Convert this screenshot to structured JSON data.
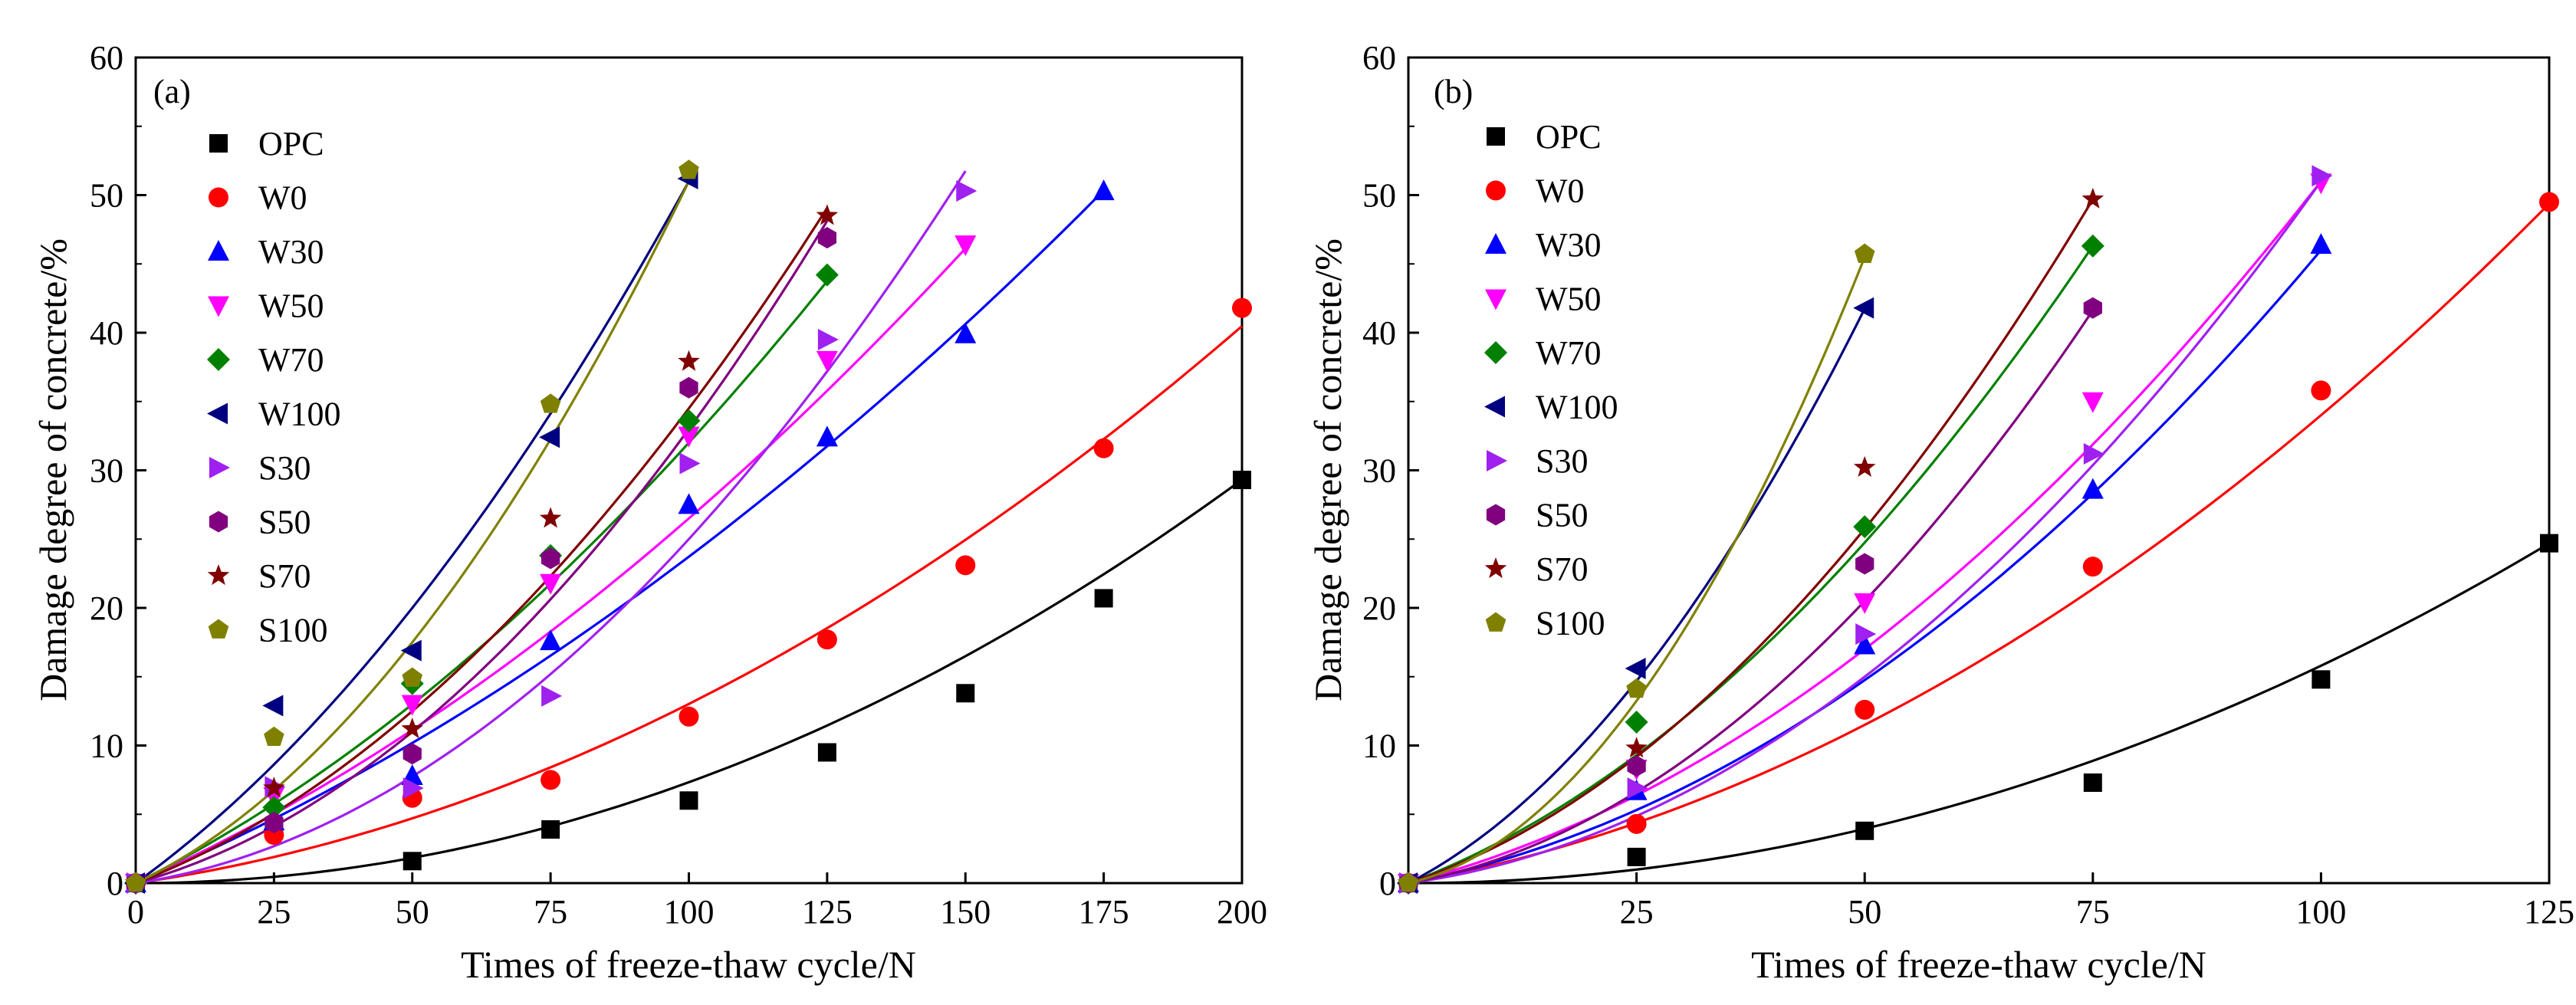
{
  "chart_data": [
    {
      "type": "scatter",
      "panel_label": "(a)",
      "xlabel": "Times of freeze-thaw cycle/N",
      "ylabel": "Damage degree of concrete/%",
      "xlim": [
        0,
        200
      ],
      "ylim": [
        0,
        60
      ],
      "xticks": [
        "0",
        "25",
        "50",
        "75",
        "100",
        "125",
        "150",
        "175",
        "200"
      ],
      "yticks": [
        "0",
        "10",
        "20",
        "30",
        "40",
        "50",
        "60"
      ],
      "legend_position": "top-left",
      "series": [
        {
          "name": "OPC",
          "marker": "square",
          "color": "#000000",
          "x": [
            0,
            50,
            75,
            100,
            125,
            150,
            175,
            200
          ],
          "y": [
            0,
            1.6,
            3.9,
            6.0,
            9.5,
            13.8,
            20.7,
            29.3
          ]
        },
        {
          "name": "W0",
          "marker": "circle",
          "color": "#ff0000",
          "x": [
            0,
            25,
            50,
            75,
            100,
            125,
            150,
            175,
            200
          ],
          "y": [
            0,
            3.5,
            6.2,
            7.5,
            12.1,
            17.7,
            23.1,
            31.6,
            41.8
          ]
        },
        {
          "name": "W30",
          "marker": "triangle-up",
          "color": "#0000ff",
          "x": [
            0,
            25,
            50,
            75,
            100,
            125,
            150,
            175
          ],
          "y": [
            0,
            4.5,
            7.8,
            17.6,
            27.5,
            32.4,
            39.9,
            50.3
          ]
        },
        {
          "name": "W50",
          "marker": "triangle-down",
          "color": "#ff00ff",
          "x": [
            0,
            25,
            50,
            75,
            100,
            125,
            150
          ],
          "y": [
            0,
            6.3,
            13.0,
            21.8,
            32.5,
            38.0,
            46.4
          ]
        },
        {
          "name": "W70",
          "marker": "diamond",
          "color": "#008000",
          "x": [
            0,
            25,
            50,
            75,
            100,
            125
          ],
          "y": [
            0,
            5.5,
            14.5,
            23.8,
            33.6,
            44.2
          ]
        },
        {
          "name": "W100",
          "marker": "triangle-left",
          "color": "#000080",
          "x": [
            0,
            25,
            50,
            75,
            100
          ],
          "y": [
            0,
            12.9,
            16.9,
            32.4,
            51.2
          ]
        },
        {
          "name": "S30",
          "marker": "triangle-right",
          "color": "#a020f0",
          "x": [
            0,
            25,
            50,
            75,
            100,
            125,
            150
          ],
          "y": [
            0,
            7.0,
            6.9,
            13.6,
            30.5,
            39.5,
            50.3
          ]
        },
        {
          "name": "S50",
          "marker": "hexagon",
          "color": "#800080",
          "x": [
            0,
            25,
            50,
            75,
            100,
            125
          ],
          "y": [
            0,
            4.4,
            9.4,
            23.6,
            36.0,
            46.9
          ]
        },
        {
          "name": "S70",
          "marker": "star",
          "color": "#800000",
          "x": [
            0,
            25,
            50,
            75,
            100,
            125
          ],
          "y": [
            0,
            6.9,
            11.2,
            26.5,
            37.9,
            48.5
          ]
        },
        {
          "name": "S100",
          "marker": "pentagon",
          "color": "#808000",
          "x": [
            0,
            25,
            50,
            75,
            100
          ],
          "y": [
            0,
            10.6,
            14.9,
            34.8,
            51.8
          ]
        }
      ],
      "fits": [
        {
          "series": "OPC",
          "color": "#000000",
          "coef": [
            0.000733,
            0.0
          ],
          "xend": 200
        },
        {
          "series": "W0",
          "color": "#ff0000",
          "coef": [
            0.000722,
            0.058
          ],
          "xend": 200
        },
        {
          "series": "W30",
          "color": "#0000ff",
          "coef": [
            0.000672,
            0.17
          ],
          "xend": 175
        },
        {
          "series": "W50",
          "color": "#ff00ff",
          "coef": [
            0.00085,
            0.18
          ],
          "xend": 150
        },
        {
          "series": "W70",
          "color": "#008000",
          "coef": [
            0.0012,
            0.2
          ],
          "xend": 125
        },
        {
          "series": "W100",
          "color": "#000080",
          "coef": [
            0.0022,
            0.29
          ],
          "xend": 100
        },
        {
          "series": "S30",
          "color": "#a020f0",
          "coef": [
            0.0019,
            0.06
          ],
          "xend": 150
        },
        {
          "series": "S50",
          "color": "#800080",
          "coef": [
            0.0022,
            0.11
          ],
          "xend": 125
        },
        {
          "series": "S70",
          "color": "#800000",
          "coef": [
            0.0019,
            0.155
          ],
          "xend": 125
        },
        {
          "series": "S100",
          "color": "#808000",
          "coef": [
            0.0032,
            0.19
          ],
          "xend": 100
        }
      ]
    },
    {
      "type": "scatter",
      "panel_label": "(b)",
      "xlabel": "Times of freeze-thaw cycle/N",
      "ylabel": "Damage degree of concrete/%",
      "xlim": [
        0,
        125
      ],
      "ylim": [
        0,
        60
      ],
      "xticks": [
        "25",
        "50",
        "75",
        "100",
        "125"
      ],
      "yticks": [
        "0",
        "10",
        "20",
        "30",
        "40",
        "50",
        "60"
      ],
      "legend_position": "top-left",
      "series": [
        {
          "name": "OPC",
          "marker": "square",
          "color": "#000000",
          "x": [
            0,
            25,
            50,
            75,
            100,
            125
          ],
          "y": [
            0,
            1.9,
            3.8,
            7.3,
            14.8,
            24.7
          ]
        },
        {
          "name": "W0",
          "marker": "circle",
          "color": "#ff0000",
          "x": [
            0,
            25,
            50,
            75,
            100,
            125
          ],
          "y": [
            0,
            4.3,
            12.6,
            23.0,
            35.8,
            49.5
          ]
        },
        {
          "name": "W30",
          "marker": "triangle-up",
          "color": "#0000ff",
          "x": [
            0,
            25,
            50,
            75,
            100
          ],
          "y": [
            0,
            6.7,
            17.3,
            28.6,
            46.4
          ]
        },
        {
          "name": "W50",
          "marker": "triangle-down",
          "color": "#ff00ff",
          "x": [
            0,
            25,
            50,
            75,
            100
          ],
          "y": [
            0,
            8.3,
            20.4,
            35.0,
            50.9
          ]
        },
        {
          "name": "W70",
          "marker": "diamond",
          "color": "#008000",
          "x": [
            0,
            25,
            50,
            75
          ],
          "y": [
            0,
            11.7,
            25.9,
            46.3
          ]
        },
        {
          "name": "W100",
          "marker": "triangle-left",
          "color": "#000080",
          "x": [
            0,
            25,
            50
          ],
          "y": [
            0,
            15.6,
            41.8
          ]
        },
        {
          "name": "S30",
          "marker": "triangle-right",
          "color": "#a020f0",
          "x": [
            0,
            25,
            50,
            75,
            100
          ],
          "y": [
            0,
            6.9,
            18.1,
            31.2,
            51.4
          ]
        },
        {
          "name": "S50",
          "marker": "hexagon",
          "color": "#800080",
          "x": [
            0,
            25,
            50,
            75
          ],
          "y": [
            0,
            8.5,
            23.2,
            41.8
          ]
        },
        {
          "name": "S70",
          "marker": "star",
          "color": "#800000",
          "x": [
            0,
            25,
            50,
            75
          ],
          "y": [
            0,
            9.8,
            30.2,
            49.7
          ]
        },
        {
          "name": "S100",
          "marker": "pentagon",
          "color": "#808000",
          "x": [
            0,
            25,
            50
          ],
          "y": [
            0,
            14.1,
            45.7
          ]
        }
      ],
      "fits": [
        {
          "series": "OPC",
          "color": "#000000",
          "coef": [
            0.00158,
            0.0
          ],
          "xend": 125
        },
        {
          "series": "W0",
          "color": "#ff0000",
          "coef": [
            0.0022,
            0.12
          ],
          "xend": 125
        },
        {
          "series": "W30",
          "color": "#0000ff",
          "coef": [
            0.0033,
            0.13
          ],
          "xend": 100
        },
        {
          "series": "W50",
          "color": "#ff00ff",
          "coef": [
            0.0034,
            0.17
          ],
          "xend": 100
        },
        {
          "series": "W70",
          "color": "#008000",
          "coef": [
            0.0049,
            0.25
          ],
          "xend": 75
        },
        {
          "series": "W100",
          "color": "#000080",
          "coef": [
            0.0099,
            0.34
          ],
          "xend": 50
        },
        {
          "series": "S30",
          "color": "#a020f0",
          "coef": [
            0.0042,
            0.09
          ],
          "xend": 100
        },
        {
          "series": "S50",
          "color": "#800080",
          "coef": [
            0.0058,
            0.12
          ],
          "xend": 75
        },
        {
          "series": "S70",
          "color": "#800000",
          "coef": [
            0.0059,
            0.22
          ],
          "xend": 75
        },
        {
          "series": "S100",
          "color": "#808000",
          "coef": [
            0.0152,
            0.15
          ],
          "xend": 50
        }
      ]
    }
  ]
}
